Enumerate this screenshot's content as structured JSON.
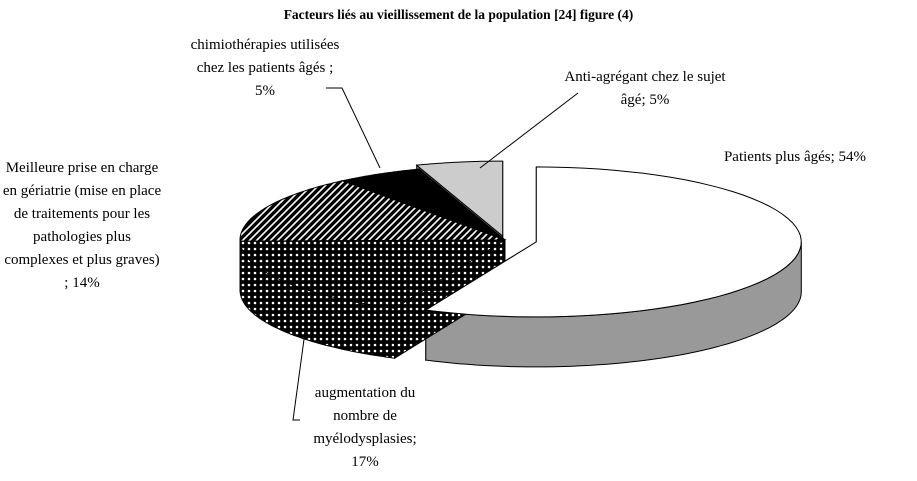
{
  "chart_data": {
    "type": "pie3d",
    "title": "Facteurs liés au vieillissement de la population [24] figure (4)",
    "categories": [
      "Patients plus âgés;",
      "augmentation du nombre de myélodysplasies;",
      "Meilleure prise en charge en gériatrie (mise en place de traitements pour les pathologies plus complexes et plus graves) ;",
      "chimiothérapies utilisées chez les patients âgés ;",
      "Anti-agrégant chez le sujet âgé;"
    ],
    "values": [
      54,
      17,
      14,
      5,
      5
    ],
    "value_labels": [
      "54%",
      "17%",
      "14%",
      "5%",
      "5%"
    ],
    "colors": [
      "#ffffff",
      "#000000",
      "#000000",
      "#000000",
      "#cccccc"
    ],
    "patterns": [
      "solid",
      "dots",
      "stripes",
      "solid",
      "solid"
    ]
  }
}
